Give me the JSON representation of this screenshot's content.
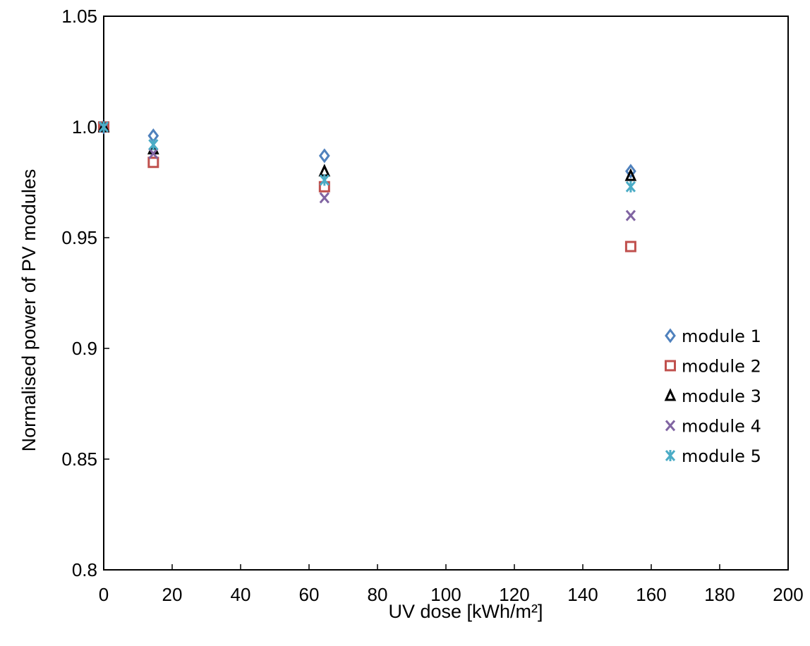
{
  "chart_data": {
    "type": "scatter",
    "title": "",
    "xlabel": "UV dose [kWh/m²]",
    "ylabel": "Normalised power of PV modules",
    "xlim": [
      0,
      200
    ],
    "ylim": [
      0.8,
      1.05
    ],
    "x_ticks": [
      0,
      20,
      40,
      60,
      80,
      100,
      120,
      140,
      160,
      180,
      200
    ],
    "y_ticks": [
      0.8,
      0.85,
      0.9,
      0.95,
      1.0,
      1.05
    ],
    "x_tick_labels": [
      "0",
      "20",
      "40",
      "60",
      "80",
      "100",
      "120",
      "140",
      "160",
      "180",
      "200"
    ],
    "y_tick_labels": [
      "0.8",
      "0.85",
      "0.9",
      "0.95",
      "1.0",
      "1.05"
    ],
    "grid": false,
    "legend_position": "right",
    "x": [
      0,
      14.5,
      64.5,
      154
    ],
    "series": [
      {
        "name": "module 1",
        "marker": "diamond",
        "color": "#4F81BD",
        "values": [
          1.0,
          0.996,
          0.987,
          0.98
        ]
      },
      {
        "name": "module 2",
        "marker": "square",
        "color": "#C0504D",
        "values": [
          1.0,
          0.984,
          0.973,
          0.946
        ]
      },
      {
        "name": "module 3",
        "marker": "triangle",
        "color": "#000000",
        "values": [
          1.0,
          0.99,
          0.98,
          0.978
        ]
      },
      {
        "name": "module 4",
        "marker": "x",
        "color": "#8064A2",
        "values": [
          1.0,
          0.988,
          0.968,
          0.96
        ]
      },
      {
        "name": "module 5",
        "marker": "asterisk",
        "color": "#4BACC6",
        "values": [
          1.0,
          0.992,
          0.976,
          0.973
        ]
      }
    ]
  }
}
